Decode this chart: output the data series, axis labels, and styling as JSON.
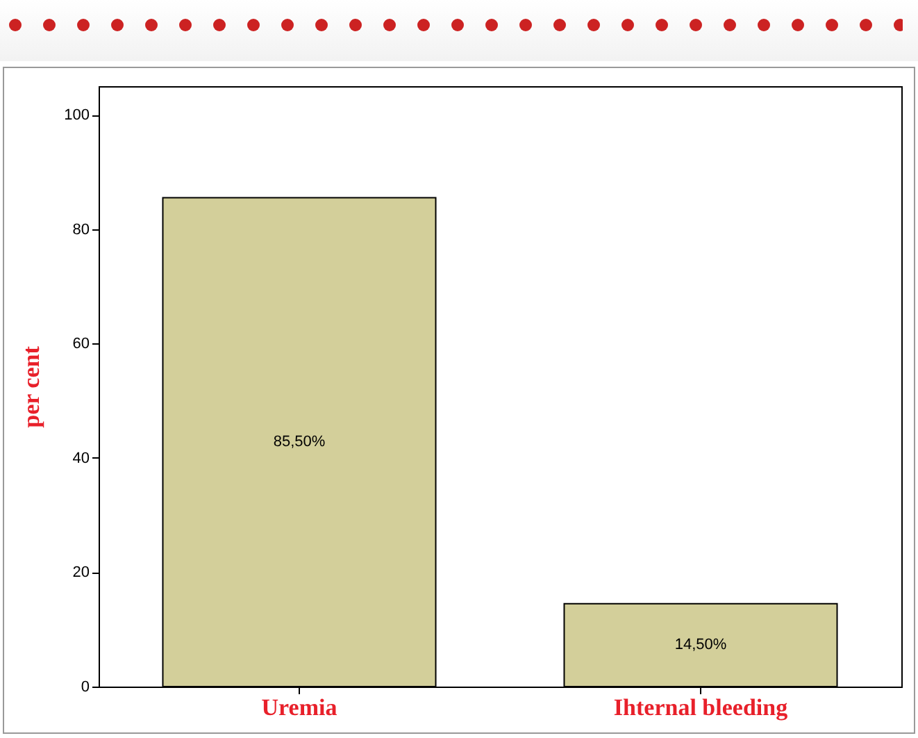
{
  "chart_data": {
    "type": "bar",
    "ylabel": "per cent",
    "categories": [
      "Uremia",
      "Ihternal bleeding"
    ],
    "values": [
      85.5,
      14.5
    ],
    "color": "#d3cf9a",
    "value_labels": [
      "85,50%",
      "14,50%"
    ],
    "ylim": [
      0,
      105
    ],
    "yticks": [
      0,
      20,
      40,
      60,
      80,
      100
    ],
    "grid": false
  }
}
